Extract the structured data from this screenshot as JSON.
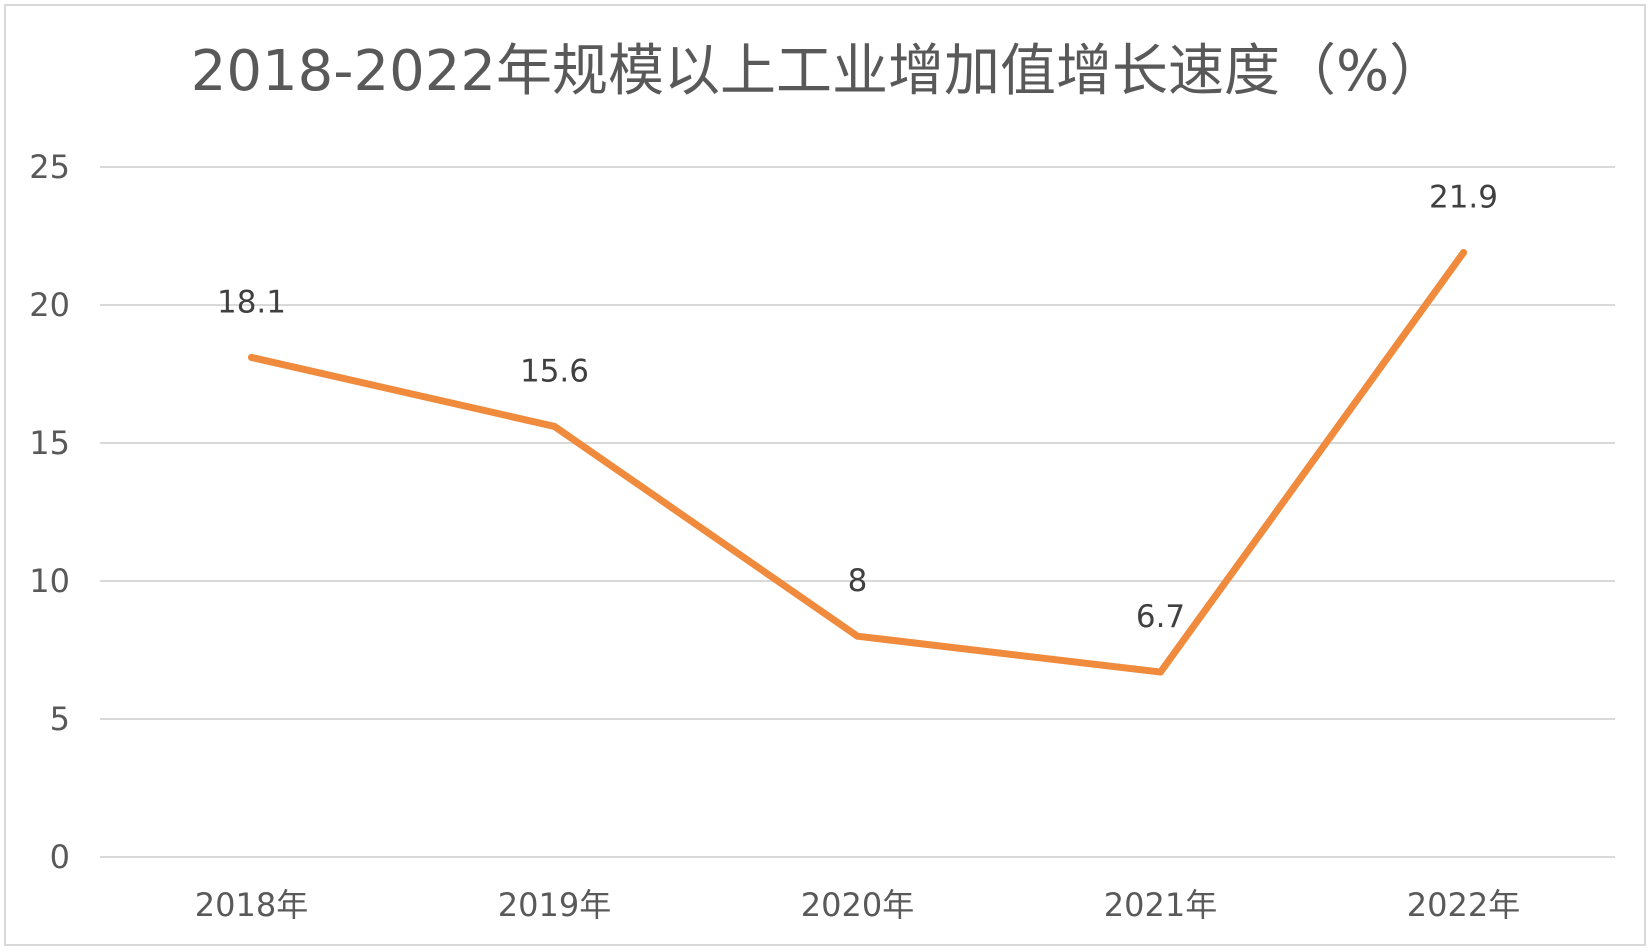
{
  "chart_data": {
    "type": "line",
    "title": "2018-2022年规模以上工业增加值增长速度（%）",
    "categories": [
      "2018年",
      "2019年",
      "2020年",
      "2021年",
      "2022年"
    ],
    "series": [
      {
        "values": [
          18.1,
          15.6,
          8,
          6.7,
          21.9
        ],
        "data_labels": [
          "18.1",
          "15.6",
          "8",
          "6.7",
          "21.9"
        ]
      }
    ],
    "yticks": [
      "0",
      "5",
      "10",
      "15",
      "20",
      "25"
    ],
    "ylim": [
      0,
      25
    ],
    "grid": true,
    "legend": "none",
    "line_color": "#F08A3C",
    "grid_color": "#d9d9d9",
    "text_color": "#595959"
  }
}
